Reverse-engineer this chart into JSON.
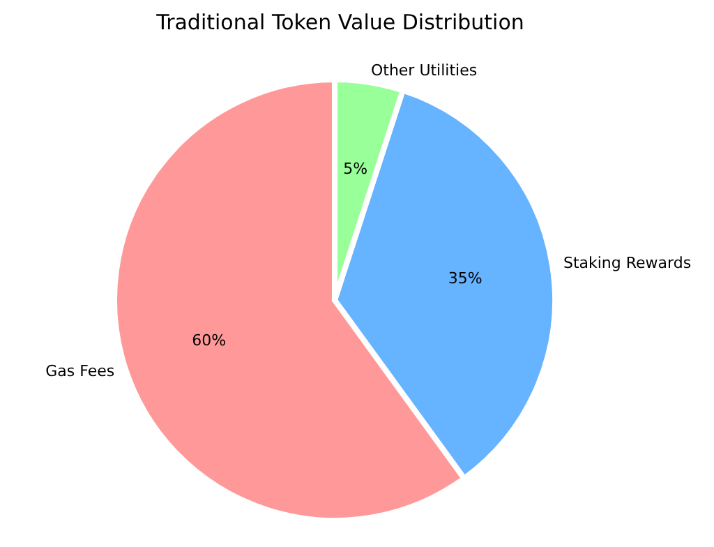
{
  "chart_data": {
    "type": "pie",
    "title": "Traditional Token Value Distribution",
    "categories": [
      "Gas Fees",
      "Staking Rewards",
      "Other Utilities"
    ],
    "values": [
      60,
      35,
      5
    ],
    "colors": [
      "#ff9999",
      "#66b3ff",
      "#99ff99"
    ],
    "value_labels": [
      "60%",
      "35%",
      "5%"
    ],
    "legend": false
  }
}
